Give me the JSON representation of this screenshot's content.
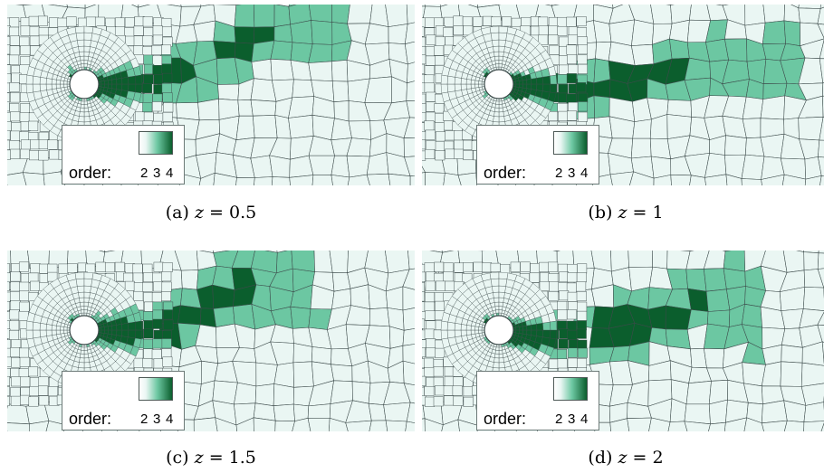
{
  "colors": {
    "order2": "#eaf6f3",
    "order3": "#6cc7a2",
    "order4": "#0b5e2d",
    "edge": "#3c4a4a",
    "background": "#ffffff"
  },
  "legend": {
    "label": "order:",
    "ticks": [
      "2",
      "3",
      "4"
    ]
  },
  "panels": [
    {
      "letter": "(a)",
      "var": "z",
      "eq": "= 0.5"
    },
    {
      "letter": "(b)",
      "var": "z",
      "eq": "= 1"
    },
    {
      "letter": "(c)",
      "var": "z",
      "eq": "= 1.5"
    },
    {
      "letter": "(d)",
      "var": "z",
      "eq": "= 2"
    }
  ]
}
